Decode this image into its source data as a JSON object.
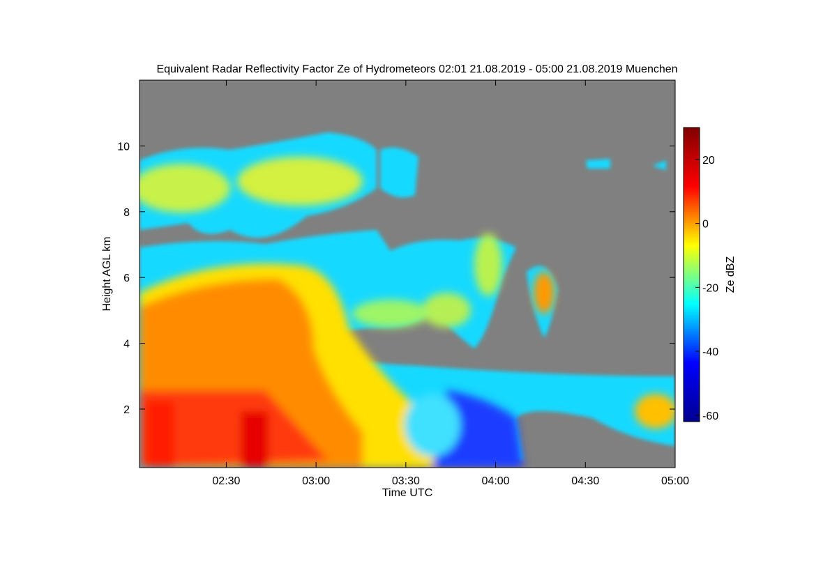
{
  "chart_data": {
    "type": "heatmap",
    "title": "Equivalent Radar Reflectivity Factor Ze of Hydrometeors   02:01 21.08.2019 - 05:00 21.08.2019 Muenchen",
    "x_label": "Time UTC",
    "y_label": "Height AGL km",
    "colorbar_label": "Ze dBZ",
    "xlim": [
      121,
      300
    ],
    "xticks": [
      {
        "value": 150,
        "label": "02:30"
      },
      {
        "value": 180,
        "label": "03:00"
      },
      {
        "value": 210,
        "label": "03:30"
      },
      {
        "value": 240,
        "label": "04:00"
      },
      {
        "value": 270,
        "label": "04:30"
      },
      {
        "value": 300,
        "label": "05:00"
      }
    ],
    "ylim": [
      0.22,
      12
    ],
    "yticks": [
      2,
      4,
      6,
      8,
      10
    ],
    "clim": [
      -62,
      30
    ],
    "cticks": [
      20,
      0,
      -20,
      -40,
      -60
    ],
    "colormap": [
      "#00008f",
      "#0000ff",
      "#00ffff",
      "#ffff00",
      "#ff0000",
      "#800000"
    ],
    "background_color": "#808080"
  }
}
